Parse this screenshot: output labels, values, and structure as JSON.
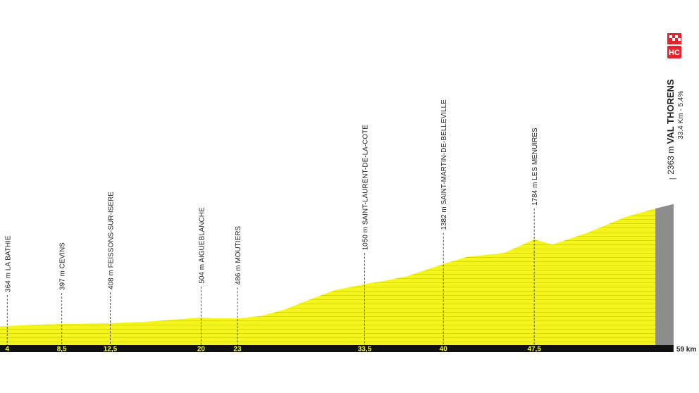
{
  "chart_data": {
    "type": "elevation-profile",
    "xlim": [
      3.4,
      61.1
    ],
    "ylim": [
      50,
      5710
    ],
    "xticks": [
      {
        "value": 4,
        "label": "4"
      },
      {
        "value": 8.5,
        "label": "8,5"
      },
      {
        "value": 12.5,
        "label": "12,5"
      },
      {
        "value": 20,
        "label": "20"
      },
      {
        "value": 23,
        "label": "23"
      },
      {
        "value": 33.5,
        "label": "33,5"
      },
      {
        "value": 40,
        "label": "40"
      },
      {
        "value": 47.5,
        "label": "47,5"
      }
    ],
    "distance": {
      "value": 59,
      "label": "59 km"
    },
    "profile": {
      "color": "#f5f51e",
      "x": [
        3.4,
        4,
        6,
        8.5,
        10,
        12.5,
        16,
        20,
        21,
        23,
        25,
        27,
        29,
        31,
        33.5,
        35,
        37,
        38.5,
        40,
        42,
        45,
        47.5,
        49,
        50.5,
        52,
        55,
        57.5
      ],
      "y": [
        360,
        364,
        380,
        397,
        400,
        408,
        440,
        504,
        492,
        486,
        530,
        640,
        800,
        950,
        1050,
        1100,
        1180,
        1280,
        1382,
        1500,
        1560,
        1784,
        1700,
        1800,
        1900,
        2150,
        2290
      ]
    },
    "final_climb": {
      "color": "#8c8c8c",
      "x": [
        57.5,
        59
      ],
      "y": [
        2290,
        2363
      ]
    },
    "waypoints": [
      {
        "label": "364 m LA BATHIE",
        "km": 4,
        "alt": 364
      },
      {
        "label": "397 m CEVINS",
        "km": 8.5,
        "alt": 397
      },
      {
        "label": "408 m FEISSONS-SUR-ISERE",
        "km": 12.5,
        "alt": 408
      },
      {
        "label": "504 m AIGUEBLANCHE",
        "km": 20,
        "alt": 504
      },
      {
        "label": "486 m MOUTIERS",
        "km": 23,
        "alt": 486
      },
      {
        "label": "1050 m SAINT-LAURENT-DE-LA-COTE",
        "km": 33.5,
        "alt": 1050
      },
      {
        "label": "1382 m SAINT-MARTIN-DE-BELLEVILLE",
        "km": 40,
        "alt": 1382
      },
      {
        "label": "1784 m LES MENUIRES",
        "km": 47.5,
        "alt": 1784
      }
    ],
    "finish": {
      "alt_label": "2363 m",
      "name": "VAL THORENS",
      "climb": "33.4 Km - 5.4%",
      "category": "HC",
      "km": 59,
      "alt": 2363
    }
  }
}
